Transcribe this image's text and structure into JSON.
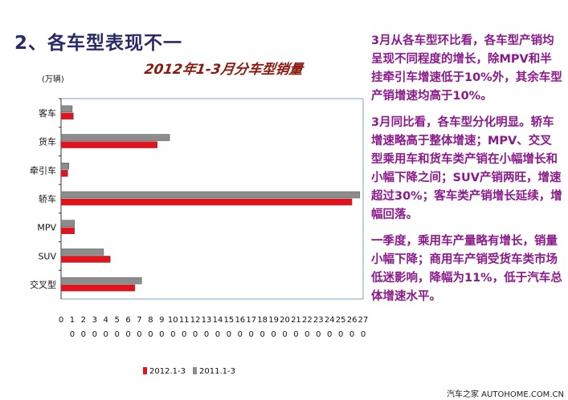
{
  "heading": "2、各车型表现不一",
  "paragraphs": [
    "3月从各车型环比看，各车型产销均呈现不同程度的增长，除MPV和半挂牵引车增速低于10%外，其余车型产销增速均高于10%。",
    "3月同比看，各车型分化明显。轿车增速略高于整体增速；MPV、交叉型乘用车和货车类产销在小幅增长和小幅下降之间；SUV产销两旺，增速超过30%；客车类产销增长延续，增幅回落。",
    "一季度，乘用车产量略有增长，销量小幅下降；商用车产销受货车类市场低迷影响，降幅为11%，低于汽车总体增速水平。"
  ],
  "footer": "汽车之家 AUTOHOME.COM.CN",
  "chart_data": {
    "type": "bar",
    "orientation": "horizontal",
    "title": "2012年1-3月分车型销量",
    "unit_label": "(万辆)",
    "categories": [
      "客车",
      "货车",
      "牵引车",
      "轿车",
      "MPV",
      "SUV",
      "交叉型"
    ],
    "series": [
      {
        "name": "2011.1-3",
        "color": "#8c8c8c",
        "values": [
          1.0,
          9.7,
          0.7,
          26.7,
          1.2,
          3.8,
          7.2
        ]
      },
      {
        "name": "2012.1-3",
        "color": "#e8101a",
        "values": [
          1.1,
          8.6,
          0.6,
          26.0,
          1.2,
          4.4,
          6.6
        ]
      }
    ],
    "xlim": [
      0,
      27
    ],
    "x_ticks": [
      "0",
      "10",
      "20",
      "30",
      "40",
      "50",
      "60",
      "70",
      "80",
      "90",
      "100",
      "110",
      "120",
      "130",
      "140",
      "150",
      "160",
      "170",
      "180",
      "190",
      "200",
      "210",
      "220",
      "230",
      "240",
      "250",
      "260",
      "270"
    ],
    "legend": [
      {
        "label": "2012.1-3",
        "color": "#e8101a"
      },
      {
        "label": "2011.1-3",
        "color": "#8c8c8c"
      }
    ],
    "legend_position": "bottom",
    "grid": false
  }
}
